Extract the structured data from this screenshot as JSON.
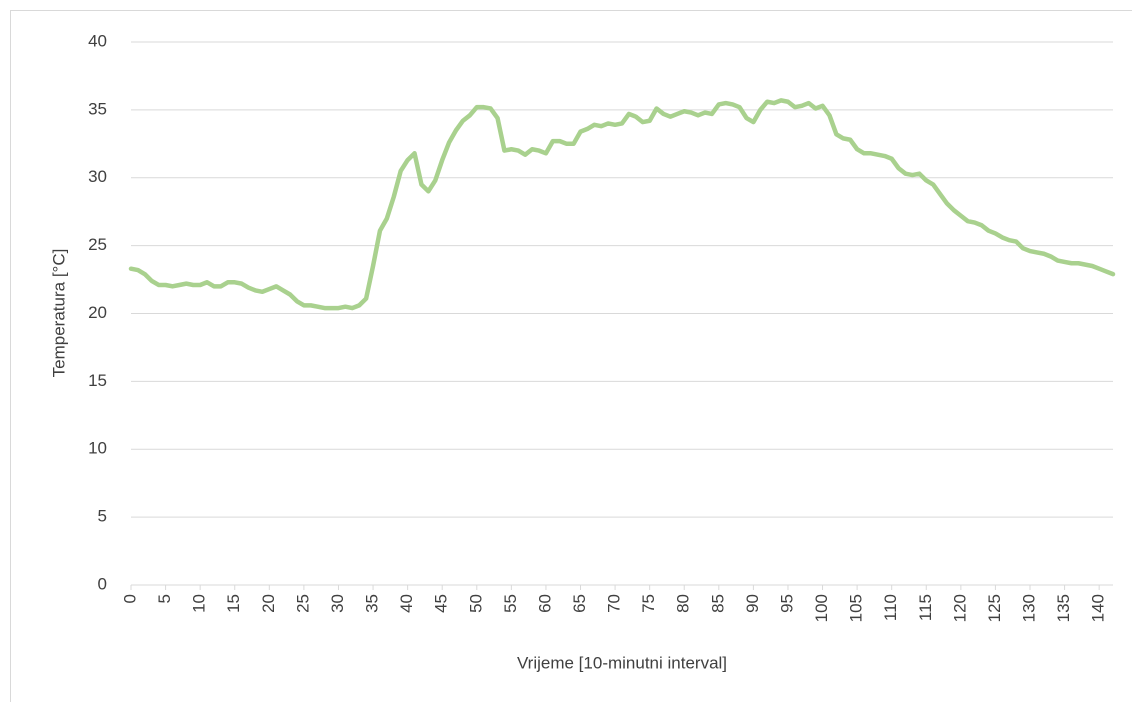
{
  "chart_data": {
    "type": "line",
    "x_label": "Vrijeme [10-minutni interval]",
    "y_label": "Temperatura [°C]",
    "x": [
      0,
      1,
      2,
      3,
      4,
      5,
      6,
      7,
      8,
      9,
      10,
      11,
      12,
      13,
      14,
      15,
      16,
      17,
      18,
      19,
      20,
      21,
      22,
      23,
      24,
      25,
      26,
      27,
      28,
      29,
      30,
      31,
      32,
      33,
      34,
      35,
      36,
      37,
      38,
      39,
      40,
      41,
      42,
      43,
      44,
      45,
      46,
      47,
      48,
      49,
      50,
      51,
      52,
      53,
      54,
      55,
      56,
      57,
      58,
      59,
      60,
      61,
      62,
      63,
      64,
      65,
      66,
      67,
      68,
      69,
      70,
      71,
      72,
      73,
      74,
      75,
      76,
      77,
      78,
      79,
      80,
      81,
      82,
      83,
      84,
      85,
      86,
      87,
      88,
      89,
      90,
      91,
      92,
      93,
      94,
      95,
      96,
      97,
      98,
      99,
      100,
      101,
      102,
      103,
      104,
      105,
      106,
      107,
      108,
      109,
      110,
      111,
      112,
      113,
      114,
      115,
      116,
      117,
      118,
      119,
      120,
      121,
      122,
      123,
      124,
      125,
      126,
      127,
      128,
      129,
      130,
      131,
      132,
      133,
      134,
      135,
      136,
      137,
      138,
      139,
      140,
      141,
      142
    ],
    "values": [
      23.3,
      23.2,
      22.9,
      22.4,
      22.1,
      22.1,
      22.0,
      22.1,
      22.2,
      22.1,
      22.1,
      22.3,
      22.0,
      22.0,
      22.3,
      22.3,
      22.2,
      21.9,
      21.7,
      21.6,
      21.8,
      22.0,
      21.7,
      21.4,
      20.9,
      20.6,
      20.6,
      20.5,
      20.4,
      20.4,
      20.4,
      20.5,
      20.4,
      20.6,
      21.1,
      23.5,
      26.1,
      27.0,
      28.6,
      30.5,
      31.3,
      31.8,
      29.5,
      29.0,
      29.8,
      31.3,
      32.6,
      33.5,
      34.2,
      34.6,
      35.2,
      35.2,
      35.1,
      34.4,
      32.0,
      32.1,
      32.0,
      31.7,
      32.1,
      32.0,
      31.8,
      32.7,
      32.7,
      32.5,
      32.5,
      33.4,
      33.6,
      33.9,
      33.8,
      34.0,
      33.9,
      34.0,
      34.7,
      34.5,
      34.1,
      34.2,
      35.1,
      34.7,
      34.5,
      34.7,
      34.9,
      34.8,
      34.6,
      34.8,
      34.7,
      35.4,
      35.5,
      35.4,
      35.2,
      34.4,
      34.1,
      35.0,
      35.6,
      35.5,
      35.7,
      35.6,
      35.2,
      35.3,
      35.5,
      35.1,
      35.3,
      34.6,
      33.2,
      32.9,
      32.8,
      32.1,
      31.8,
      31.8,
      31.7,
      31.6,
      31.4,
      30.7,
      30.3,
      30.2,
      30.3,
      29.8,
      29.5,
      28.8,
      28.1,
      27.6,
      27.2,
      26.8,
      26.7,
      26.5,
      26.1,
      25.9,
      25.6,
      25.4,
      25.3,
      24.8,
      24.6,
      24.5,
      24.4,
      24.2,
      23.9,
      23.8,
      23.7,
      23.7,
      23.6,
      23.5,
      23.3,
      23.1,
      22.9
    ],
    "color": "#a9d18e",
    "xlim": [
      0,
      142
    ],
    "xticks": [
      0,
      5,
      10,
      15,
      20,
      25,
      30,
      35,
      40,
      45,
      50,
      55,
      60,
      65,
      70,
      75,
      80,
      85,
      90,
      95,
      100,
      105,
      110,
      115,
      120,
      125,
      130,
      135,
      140
    ],
    "ylim": [
      0,
      40
    ],
    "yticks": [
      0,
      5,
      10,
      15,
      20,
      25,
      30,
      35,
      40
    ],
    "grid": true
  }
}
